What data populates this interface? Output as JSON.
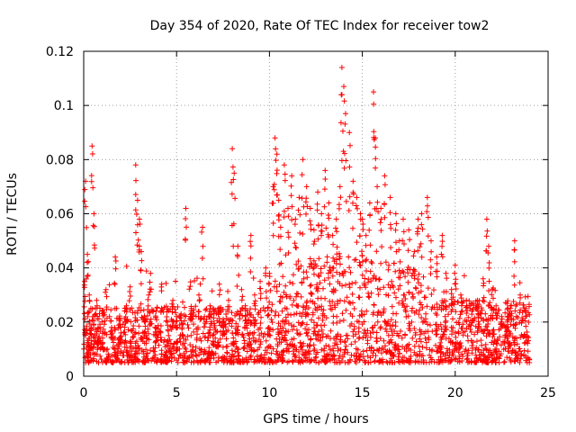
{
  "chart_data": {
    "type": "scatter",
    "title": "Day 354 of 2020, Rate Of TEC Index for receiver tow2",
    "xlabel": "GPS time / hours",
    "ylabel": "ROTI / TECUs",
    "xlim": [
      0,
      25
    ],
    "ylim": [
      0,
      0.12
    ],
    "xticks": [
      "0",
      "5",
      "10",
      "15",
      "20",
      "25"
    ],
    "yticks": [
      "0",
      "0.02",
      "0.04",
      "0.06",
      "0.08",
      "0.1",
      "0.12"
    ],
    "xtick_values": [
      0,
      5,
      10,
      15,
      20,
      25
    ],
    "ytick_values": [
      0,
      0.02,
      0.04,
      0.06,
      0.08,
      0.1,
      0.12
    ],
    "grid": true,
    "marker": "+",
    "color": "#ff0000",
    "series": [
      {
        "name": "",
        "x": [
          0.05,
          0.1,
          0.2,
          0.25,
          0.3,
          0.4,
          0.45,
          0.5,
          0.55,
          0.6,
          0.7,
          0.8,
          1.0,
          1.2,
          1.5,
          1.7,
          1.9,
          2.0,
          2.3,
          2.5,
          2.8,
          2.9,
          3.0,
          3.1,
          3.3,
          3.5,
          3.6,
          3.9,
          4.2,
          4.5,
          4.8,
          5.0,
          5.3,
          5.5,
          5.8,
          6.2,
          6.4,
          6.5,
          6.8,
          7.0,
          7.3,
          7.5,
          7.8,
          8.0,
          8.1,
          8.3,
          8.5,
          8.7,
          9.0,
          9.2,
          9.5,
          9.8,
          10.0,
          10.2,
          10.3,
          10.4,
          10.5,
          10.6,
          10.8,
          11.0,
          11.2,
          11.4,
          11.6,
          11.8,
          12.0,
          12.2,
          12.4,
          12.6,
          12.8,
          13.0,
          13.2,
          13.4,
          13.6,
          13.8,
          13.9,
          14.0,
          14.1,
          14.3,
          14.5,
          14.7,
          14.9,
          15.0,
          15.2,
          15.4,
          15.6,
          15.7,
          15.8,
          16.0,
          16.2,
          16.5,
          16.8,
          17.0,
          17.2,
          17.5,
          17.8,
          18.0,
          18.2,
          18.5,
          18.7,
          19.0,
          19.3,
          19.5,
          19.8,
          20.0,
          20.3,
          20.6,
          20.9,
          21.2,
          21.5,
          21.7,
          21.8,
          22.0,
          22.2,
          22.5,
          22.8,
          23.0,
          23.2,
          23.5,
          23.8
        ],
        "y": [
          0.035,
          0.072,
          0.045,
          0.012,
          0.03,
          0.018,
          0.085,
          0.022,
          0.06,
          0.015,
          0.028,
          0.014,
          0.024,
          0.032,
          0.018,
          0.044,
          0.021,
          0.016,
          0.026,
          0.033,
          0.078,
          0.065,
          0.058,
          0.046,
          0.02,
          0.03,
          0.038,
          0.024,
          0.034,
          0.02,
          0.028,
          0.022,
          0.018,
          0.062,
          0.025,
          0.03,
          0.055,
          0.022,
          0.026,
          0.024,
          0.034,
          0.02,
          0.028,
          0.084,
          0.075,
          0.048,
          0.032,
          0.026,
          0.052,
          0.03,
          0.035,
          0.04,
          0.038,
          0.07,
          0.088,
          0.082,
          0.065,
          0.055,
          0.078,
          0.062,
          0.074,
          0.058,
          0.066,
          0.08,
          0.07,
          0.062,
          0.054,
          0.068,
          0.06,
          0.076,
          0.064,
          0.052,
          0.058,
          0.07,
          0.114,
          0.107,
          0.097,
          0.09,
          0.072,
          0.066,
          0.06,
          0.058,
          0.052,
          0.064,
          0.105,
          0.088,
          0.07,
          0.062,
          0.074,
          0.066,
          0.06,
          0.05,
          0.058,
          0.054,
          0.046,
          0.058,
          0.06,
          0.066,
          0.05,
          0.044,
          0.052,
          0.038,
          0.032,
          0.041,
          0.03,
          0.028,
          0.024,
          0.028,
          0.036,
          0.058,
          0.048,
          0.032,
          0.026,
          0.022,
          0.02,
          0.026,
          0.05,
          0.03,
          0.025
        ],
        "noise_floor": [
          0.005,
          0.03
        ]
      }
    ]
  }
}
